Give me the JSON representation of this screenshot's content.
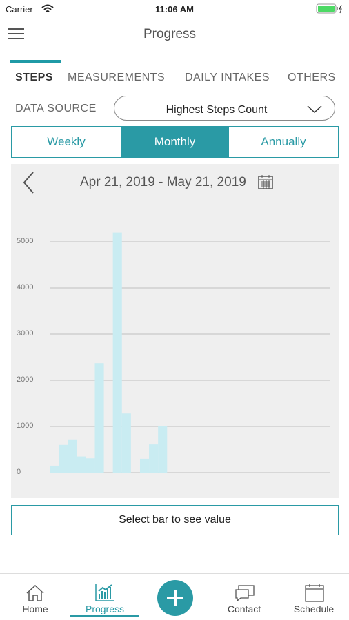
{
  "status": {
    "carrier": "Carrier",
    "time": "11:06 AM"
  },
  "header": {
    "title": "Progress"
  },
  "tabs": [
    "STEPS",
    "MEASUREMENTS",
    "DAILY INTAKES",
    "OTHERS"
  ],
  "data_source": {
    "label": "DATA SOURCE",
    "value": "Highest Steps Count"
  },
  "periods": [
    "Weekly",
    "Monthly",
    "Annually"
  ],
  "date_range": "Apr 21, 2019 - May 21, 2019",
  "chart_data": {
    "type": "bar",
    "categories": [
      null,
      null,
      null,
      null,
      null,
      null,
      null,
      null,
      null,
      null,
      null,
      null,
      null,
      null,
      null,
      null,
      null,
      null,
      null,
      null,
      null,
      null,
      null,
      null,
      null,
      null,
      null,
      null,
      null,
      null,
      null
    ],
    "values": [
      150,
      600,
      720,
      350,
      310,
      2370,
      0,
      5200,
      1280,
      0,
      300,
      610,
      1010,
      0,
      0,
      0,
      0,
      0,
      0,
      0,
      0,
      0,
      0,
      0,
      0,
      0,
      0,
      0,
      0,
      0,
      0
    ],
    "color": "#c9ecf2",
    "ylim": [
      0,
      5500
    ],
    "yticks": [
      0,
      1000,
      2000,
      3000,
      4000,
      5000
    ],
    "grid": true
  },
  "hint": "Select bar to see value",
  "nav": [
    "Home",
    "Progress",
    "Contact",
    "Schedule"
  ]
}
